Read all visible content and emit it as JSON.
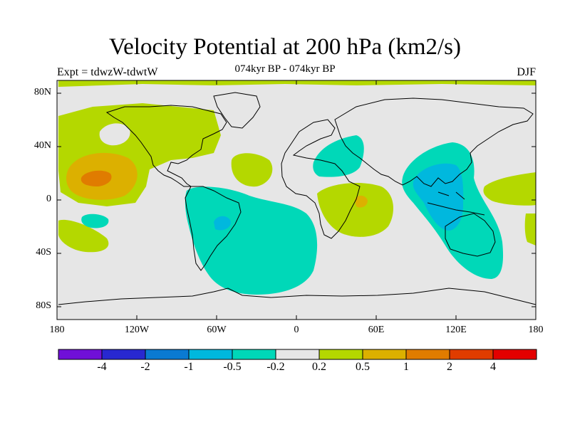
{
  "title": "Velocity Potential at 200 hPa (km2/s)",
  "subtitle": "074kyr BP - 074kyr BP",
  "left_label": "Expt = tdwzW-tdwtW",
  "right_label": "DJF",
  "lat_labels": [
    "80N",
    "40N",
    "0",
    "40S",
    "80S"
  ],
  "lon_labels": [
    "180",
    "120W",
    "60W",
    "0",
    "60E",
    "120E",
    "180"
  ],
  "colorbar": {
    "labels": [
      "-4",
      "-2",
      "-1",
      "-0.5",
      "-0.2",
      "0.2",
      "0.5",
      "1",
      "2",
      "4"
    ],
    "colors": [
      "#7010d8",
      "#2828d0",
      "#0a7ad2",
      "#00b8de",
      "#00d8b8",
      "#e6e6e6",
      "#b4d800",
      "#dcb000",
      "#e07c00",
      "#e03c00",
      "#e40000"
    ]
  },
  "colors": {
    "ocean": "#e6e6e6",
    "coast": "#000000"
  }
}
